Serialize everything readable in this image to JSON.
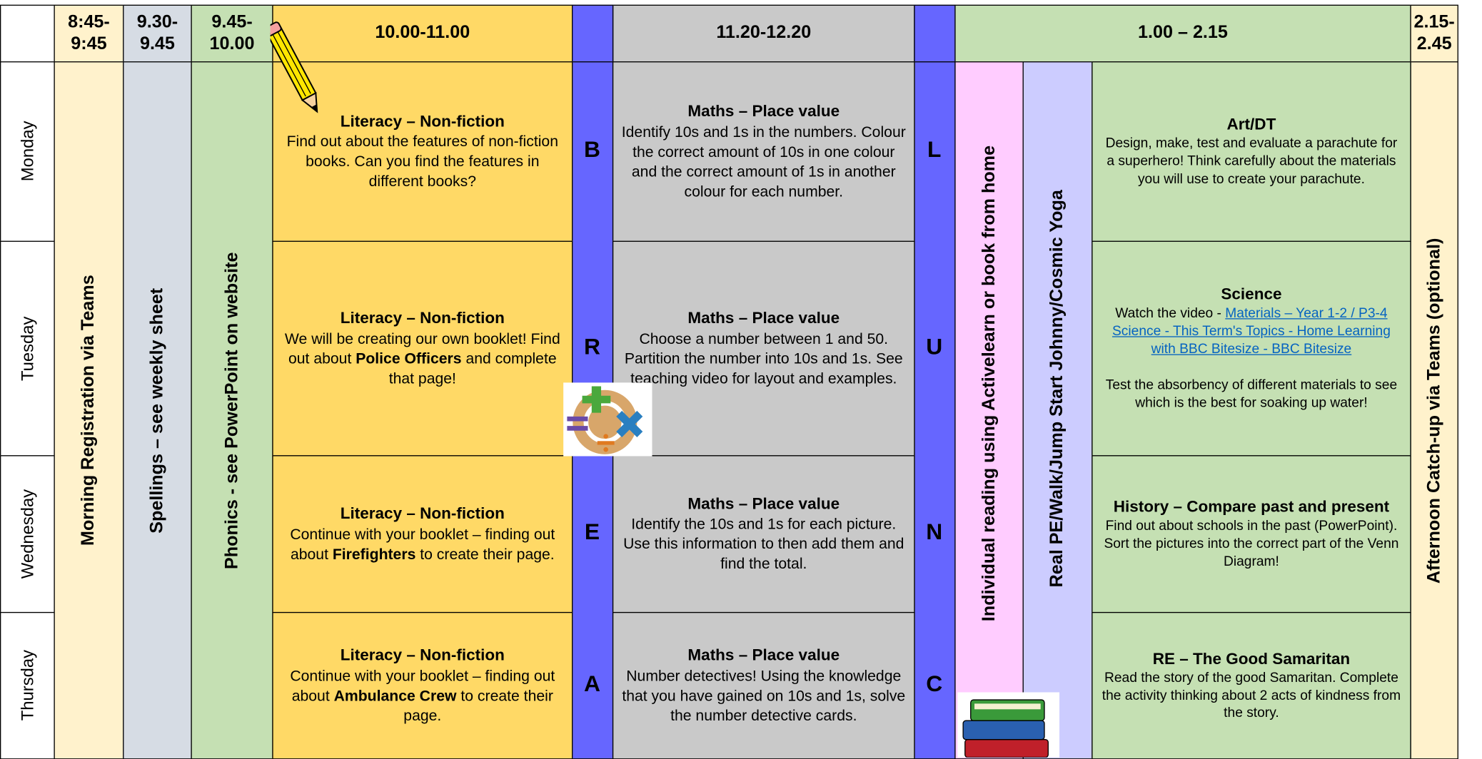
{
  "header": {
    "times": [
      "8:45-9:45",
      "9.30-9.45",
      "9.45-10.00",
      "10.00-11.00",
      "11.20-12.20",
      "1.00 – 2.15",
      "2.15-2.45"
    ]
  },
  "days": [
    "Monday",
    "Tuesday",
    "Wednesday",
    "Thursday"
  ],
  "columns": {
    "registration": "Morning Registration via Teams",
    "spellings": "Spellings – see weekly sheet",
    "phonics": "Phonics  - see PowerPoint on website",
    "reading": "Individual reading using Activelearn or book from home",
    "pe": "Real PE/Walk/Jump Start Johnny/Cosmic Yoga",
    "catch_up": "Afternoon Catch-up via Teams (optional)"
  },
  "break_letters": [
    "B",
    "R",
    "E",
    "A"
  ],
  "lunch_letters": [
    "L",
    "U",
    "N",
    "C"
  ],
  "literacy": [
    {
      "title": "Literacy – Non-fiction",
      "paragraphs": [
        [
          {
            "text": "Find out about the features of non-fiction books. Can you find the features in different books?"
          }
        ]
      ]
    },
    {
      "title": "Literacy – Non-fiction",
      "paragraphs": [
        [
          {
            "text": "We will be creating our own booklet! Find out about "
          },
          {
            "text": "Police Officers",
            "bold": true
          },
          {
            "text": " and complete that page!"
          }
        ]
      ]
    },
    {
      "title": "Literacy – Non-fiction",
      "paragraphs": [
        [
          {
            "text": "Continue with your booklet – finding out about "
          },
          {
            "text": "Firefighters",
            "bold": true
          },
          {
            "text": " to create their page."
          }
        ]
      ]
    },
    {
      "title": "Literacy – Non-fiction",
      "paragraphs": [
        [
          {
            "text": "Continue with your booklet – finding out about "
          },
          {
            "text": "Ambulance Crew",
            "bold": true
          },
          {
            "text": " to create their page."
          }
        ]
      ]
    }
  ],
  "maths": [
    {
      "title": "Maths – Place value",
      "paragraphs": [
        [
          {
            "text": "Identify 10s and 1s in the numbers. Colour the correct amount of 10s in one colour and the correct amount of 1s in another colour for each number."
          }
        ]
      ]
    },
    {
      "title": "Maths – Place value",
      "paragraphs": [
        [
          {
            "text": "Choose a number between 1 and 50. Partition the number into 10s and 1s. See teaching video for layout and examples."
          }
        ]
      ]
    },
    {
      "title": "Maths – Place value",
      "paragraphs": [
        [
          {
            "text": "Identify the 10s and 1s for each picture. Use this information to then add them and find the total."
          }
        ]
      ]
    },
    {
      "title": "Maths – Place value",
      "paragraphs": [
        [
          {
            "text": "Number detectives! Using the knowledge that you have gained on 10s and 1s, solve the number detective cards."
          }
        ]
      ]
    }
  ],
  "afternoon": [
    {
      "title": "Art/DT",
      "paragraphs": [
        [
          {
            "text": "Design, make, test and evaluate a parachute for a superhero! Think carefully about the materials you will use to create your parachute."
          }
        ]
      ]
    },
    {
      "title": "Science",
      "paragraphs": [
        [
          {
            "text": "Watch the video - "
          },
          {
            "text": "Materials – Year 1-2 / P3-4 Science - This Term's Topics - Home Learning with BBC Bitesize - BBC Bitesize",
            "link": true
          }
        ],
        [
          {
            "text": "Test the absorbency of different materials to see which is the best for soaking up water!"
          }
        ]
      ]
    },
    {
      "title": "History – Compare past and present",
      "paragraphs": [
        [
          {
            "text": "Find out about schools in the past (PowerPoint). Sort the pictures into the correct part of the Venn Diagram!"
          }
        ]
      ]
    },
    {
      "title": "RE – The Good Samaritan",
      "paragraphs": [
        [
          {
            "text": "Read the story of the good Samaritan. Complete the activity thinking about 2 acts of kindness from the story."
          }
        ]
      ]
    }
  ]
}
